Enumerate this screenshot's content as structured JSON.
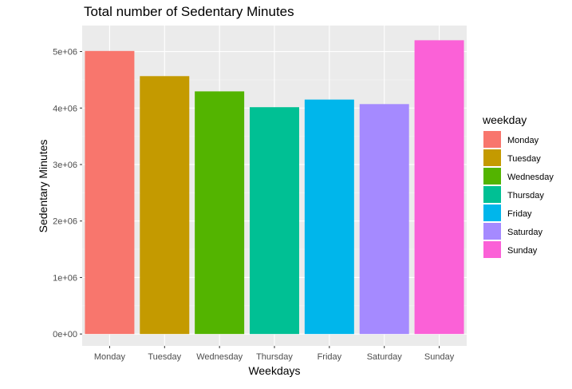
{
  "chart_data": {
    "type": "bar",
    "title": "Total number of Sedentary Minutes",
    "xlabel": "Weekdays",
    "ylabel": "Sedentary Minutes",
    "categories": [
      "Monday",
      "Tuesday",
      "Wednesday",
      "Thursday",
      "Friday",
      "Saturday",
      "Sunday"
    ],
    "values": [
      5010000,
      4565000,
      4295000,
      4015000,
      4150000,
      4070000,
      5200000
    ],
    "colors": [
      "#F8766D",
      "#C49A00",
      "#53B400",
      "#00C094",
      "#00B6EB",
      "#A58AFF",
      "#FB61D7"
    ],
    "ylim": [
      -210000,
      5460000
    ],
    "yticks": [
      0,
      1000000,
      2000000,
      3000000,
      4000000,
      5000000
    ],
    "ytick_labels": [
      "0e+00",
      "1e+06",
      "2e+06",
      "3e+06",
      "4e+06",
      "5e+06"
    ],
    "grid": true,
    "legend": {
      "title": "weekday",
      "placement": "right",
      "entries": [
        "Monday",
        "Tuesday",
        "Wednesday",
        "Thursday",
        "Friday",
        "Saturday",
        "Sunday"
      ]
    }
  }
}
